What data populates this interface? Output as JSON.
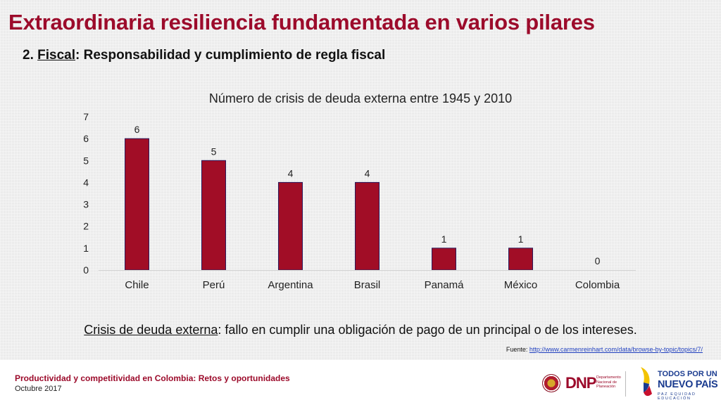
{
  "title": "Extraordinaria resiliencia fundamentada en varios pilares",
  "subtitle": {
    "prefix": "2. ",
    "keyword": "Fiscal",
    "rest": ": Responsabilidad y cumplimiento de regla fiscal"
  },
  "chart_data": {
    "type": "bar",
    "title": "Número de crisis de deuda externa entre 1945 y 2010",
    "categories": [
      "Chile",
      "Perú",
      "Argentina",
      "Brasil",
      "Panamá",
      "México",
      "Colombia"
    ],
    "values": [
      6,
      5,
      4,
      4,
      1,
      1,
      0
    ],
    "yticks": [
      0,
      1,
      2,
      3,
      4,
      5,
      6,
      7
    ],
    "ylim": [
      0,
      7
    ],
    "grid": false,
    "data_labels": true,
    "bar_color": "#a10d26",
    "bar_border": "#2b1a5c"
  },
  "definition": {
    "term": "Crisis de deuda externa",
    "rest": ": fallo en cumplir una obligación de pago de un principal o de los intereses."
  },
  "source": {
    "label": "Fuente: ",
    "url_text": "http://www.carmenreinhart.com/data/browse-by-topic/topics/7/"
  },
  "footer": {
    "main": "Productividad y competitividad en Colombia: Retos y oportunidades",
    "date": "Octubre 2017"
  },
  "logos": {
    "dnp_text": "DNP",
    "dnp_sub": "Departamento Nacional de Planeación",
    "nuevo_l1": "TODOS POR UN",
    "nuevo_l2": "NUEVO PAÍS",
    "nuevo_l3": "PAZ EQUIDAD EDUCACIÓN"
  },
  "colors": {
    "accent": "#9c0b2b",
    "link": "#1f3fbf",
    "nuevo_blue": "#1a3b8f"
  }
}
